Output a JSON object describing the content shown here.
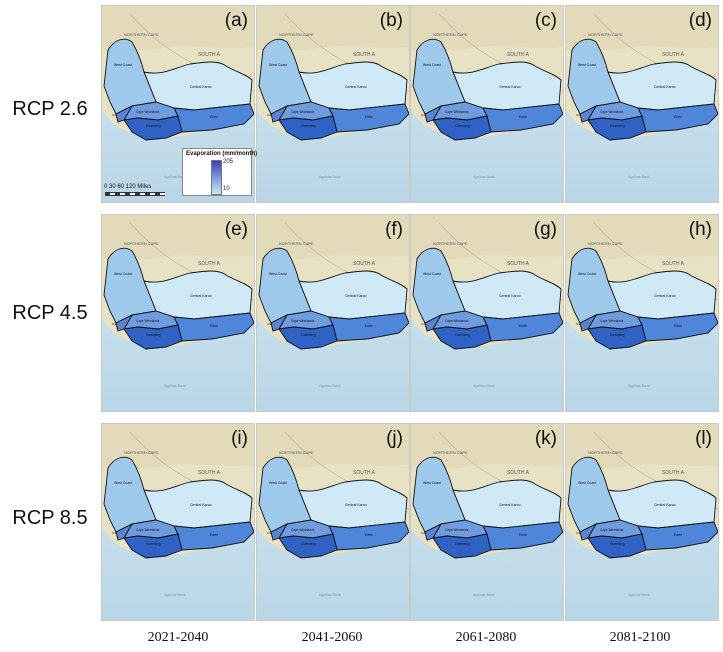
{
  "rows": [
    {
      "label": "RCP 2.6",
      "panels": [
        "(a)",
        "(b)",
        "(c)",
        "(d)"
      ]
    },
    {
      "label": "RCP 4.5",
      "panels": [
        "(e)",
        "(f)",
        "(g)",
        "(h)"
      ]
    },
    {
      "label": "RCP 8.5",
      "panels": [
        "(i)",
        "(j)",
        "(k)",
        "(l)"
      ]
    }
  ],
  "columns": [
    "2021-2040",
    "2041-2060",
    "2061-2080",
    "2081-2100"
  ],
  "map_labels": {
    "province": "NORTHERN CAPE",
    "country": "SOUTH A",
    "west_coast": "West Coast",
    "central_karoo": "Central Karoo",
    "winelands": "Cape Winelands",
    "eden": "Eden",
    "overberg": "Overberg",
    "city": "City",
    "ocean": "Agulhas Bank"
  },
  "legend": {
    "title": "Evaporation (mm/month)",
    "max": "205",
    "min": "10",
    "colors": [
      "#3d3fb5",
      "#7b8fd9",
      "#c7e8f5"
    ]
  },
  "scale": {
    "text": "0  30  60      120 Miles"
  }
}
